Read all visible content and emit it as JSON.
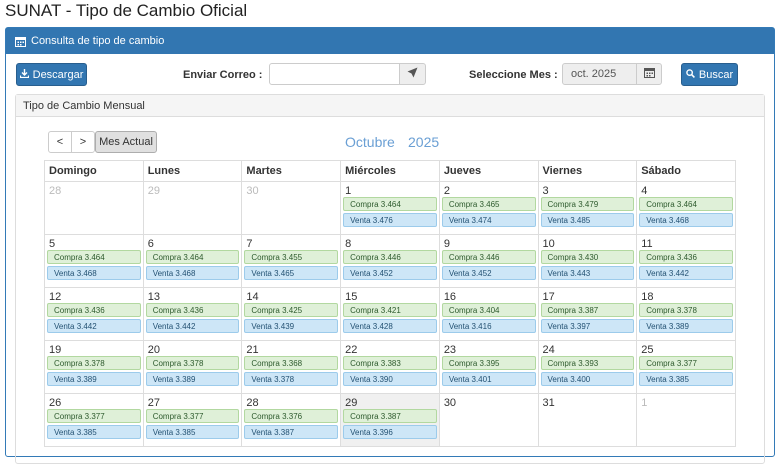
{
  "title": "SUNAT - Tipo de Cambio Oficial",
  "panel": {
    "heading": "Consulta de tipo de cambio"
  },
  "toolbar": {
    "download_label": "Descargar",
    "email_label": "Enviar Correo :",
    "email_value": "",
    "month_label": "Seleccione Mes :",
    "month_value": "oct. 2025",
    "search_label": "Buscar"
  },
  "calendar": {
    "heading": "Tipo de Cambio Mensual",
    "prev": "<",
    "next": ">",
    "current_month": "Mes Actual",
    "month_name": "Octubre",
    "year": "2025",
    "weekdays": [
      "Domingo",
      "Lunes",
      "Martes",
      "Miércoles",
      "Jueves",
      "Viernes",
      "Sábado"
    ],
    "weeks": [
      [
        {
          "day": "28",
          "other": true
        },
        {
          "day": "29",
          "other": true
        },
        {
          "day": "30",
          "other": true
        },
        {
          "day": "1",
          "compra": "Compra 3.464",
          "venta": "Venta 3.476"
        },
        {
          "day": "2",
          "compra": "Compra 3.465",
          "venta": "Venta 3.474"
        },
        {
          "day": "3",
          "compra": "Compra 3.479",
          "venta": "Venta 3.485"
        },
        {
          "day": "4",
          "compra": "Compra 3.464",
          "venta": "Venta 3.468"
        }
      ],
      [
        {
          "day": "5",
          "compra": "Compra 3.464",
          "venta": "Venta 3.468"
        },
        {
          "day": "6",
          "compra": "Compra 3.464",
          "venta": "Venta 3.468"
        },
        {
          "day": "7",
          "compra": "Compra 3.455",
          "venta": "Venta 3.465"
        },
        {
          "day": "8",
          "compra": "Compra 3.446",
          "venta": "Venta 3.452"
        },
        {
          "day": "9",
          "compra": "Compra 3.446",
          "venta": "Venta 3.452"
        },
        {
          "day": "10",
          "compra": "Compra 3.430",
          "venta": "Venta 3.443"
        },
        {
          "day": "11",
          "compra": "Compra 3.436",
          "venta": "Venta 3.442"
        }
      ],
      [
        {
          "day": "12",
          "compra": "Compra 3.436",
          "venta": "Venta 3.442"
        },
        {
          "day": "13",
          "compra": "Compra 3.436",
          "venta": "Venta 3.442"
        },
        {
          "day": "14",
          "compra": "Compra 3.425",
          "venta": "Venta 3.439"
        },
        {
          "day": "15",
          "compra": "Compra 3.421",
          "venta": "Venta 3.428"
        },
        {
          "day": "16",
          "compra": "Compra 3.404",
          "venta": "Venta 3.416"
        },
        {
          "day": "17",
          "compra": "Compra 3.387",
          "venta": "Venta 3.397"
        },
        {
          "day": "18",
          "compra": "Compra 3.378",
          "venta": "Venta 3.389"
        }
      ],
      [
        {
          "day": "19",
          "compra": "Compra 3.378",
          "venta": "Venta 3.389"
        },
        {
          "day": "20",
          "compra": "Compra 3.378",
          "venta": "Venta 3.389"
        },
        {
          "day": "21",
          "compra": "Compra 3.368",
          "venta": "Venta 3.378"
        },
        {
          "day": "22",
          "compra": "Compra 3.383",
          "venta": "Venta 3.390"
        },
        {
          "day": "23",
          "compra": "Compra 3.395",
          "venta": "Venta 3.401"
        },
        {
          "day": "24",
          "compra": "Compra 3.393",
          "venta": "Venta 3.400"
        },
        {
          "day": "25",
          "compra": "Compra 3.377",
          "venta": "Venta 3.385"
        }
      ],
      [
        {
          "day": "26",
          "compra": "Compra 3.377",
          "venta": "Venta 3.385"
        },
        {
          "day": "27",
          "compra": "Compra 3.377",
          "venta": "Venta 3.385"
        },
        {
          "day": "28",
          "compra": "Compra 3.376",
          "venta": "Venta 3.387"
        },
        {
          "day": "29",
          "compra": "Compra 3.387",
          "venta": "Venta 3.396",
          "today": true
        },
        {
          "day": "30"
        },
        {
          "day": "31"
        },
        {
          "day": "1",
          "other": true
        }
      ]
    ]
  },
  "icons": {
    "calendar": "calendar-icon",
    "download": "download-icon",
    "send": "send-icon",
    "search": "search-icon"
  },
  "colors": {
    "primary": "#3276b1",
    "compra_bg": "#dff0d8",
    "venta_bg": "#cde6f7",
    "month_title": "#6a9fd4"
  }
}
